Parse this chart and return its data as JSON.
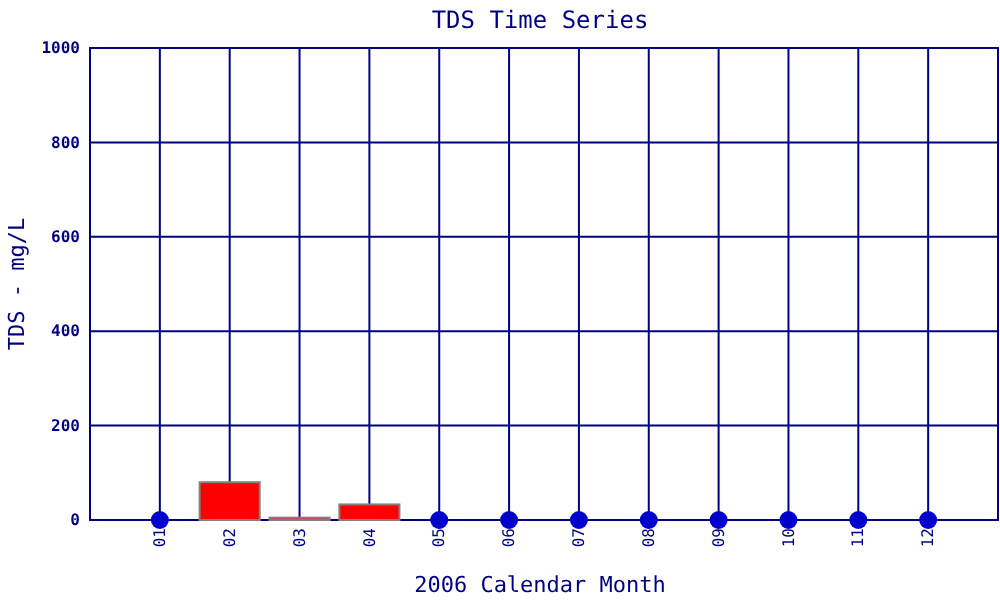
{
  "chart_data": {
    "type": "bar",
    "title": "TDS Time Series",
    "xlabel": "2006 Calendar Month",
    "ylabel": "TDS - mg/L",
    "categories": [
      "01",
      "02",
      "03",
      "04",
      "05",
      "06",
      "07",
      "08",
      "09",
      "10",
      "11",
      "12"
    ],
    "series": [
      {
        "color": "#ff0000",
        "values": [
          null,
          80,
          5,
          33,
          null,
          null,
          null,
          null,
          null,
          null,
          null,
          null
        ]
      },
      {
        "type": "scatter",
        "color": "#0000cc",
        "marker": "circle",
        "values": [
          0,
          null,
          null,
          null,
          0,
          0,
          0,
          0,
          0,
          0,
          0,
          0
        ]
      }
    ],
    "ylim": [
      0,
      1000
    ],
    "yticks": [
      0,
      200,
      400,
      600,
      800,
      1000
    ],
    "grid": true
  }
}
